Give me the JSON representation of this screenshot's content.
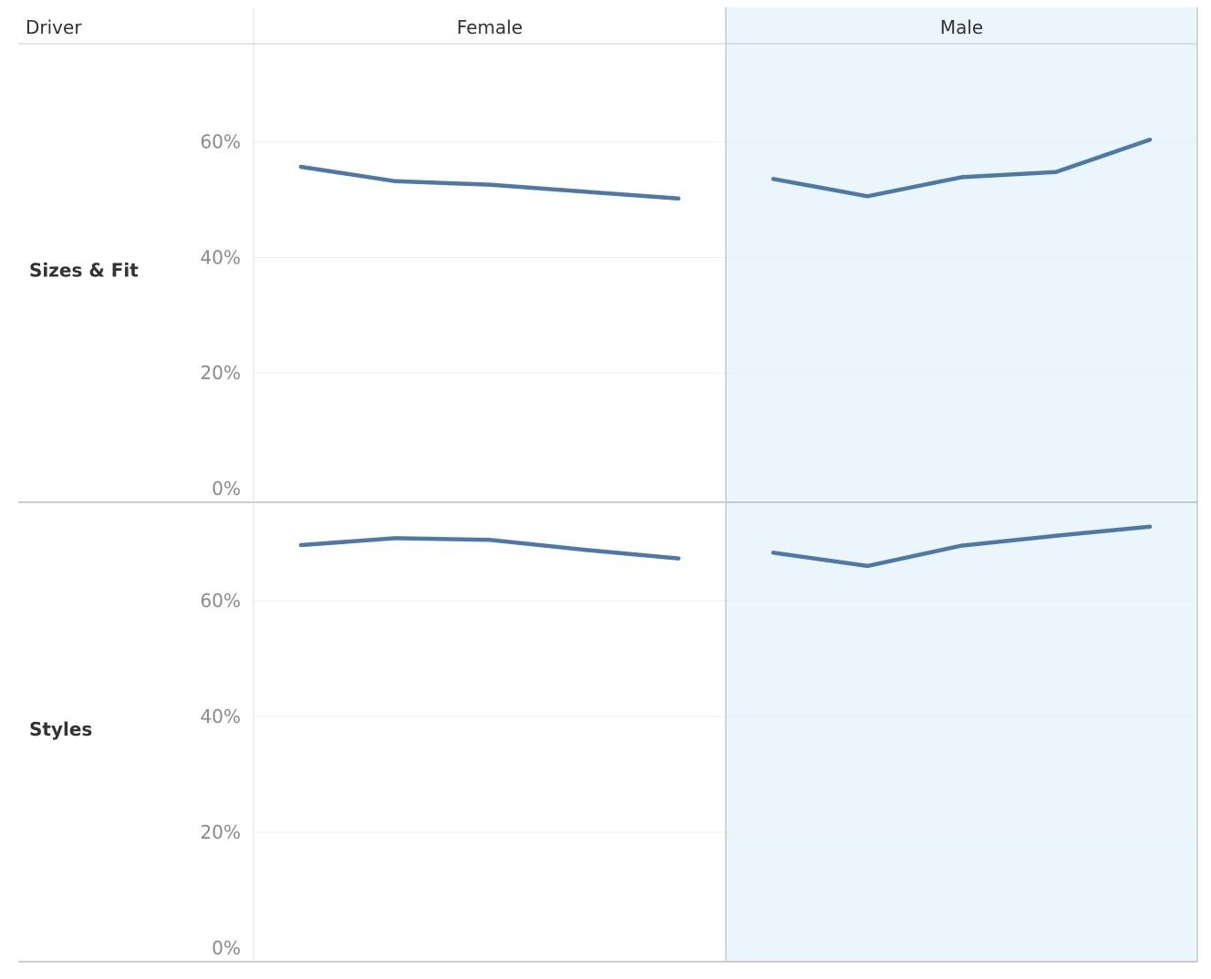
{
  "chart_data": {
    "type": "line",
    "row_header": "Driver",
    "columns": [
      "Female",
      "Male"
    ],
    "rows": [
      "Sizes & Fit",
      "Styles"
    ],
    "highlighted_column": "Male",
    "colors": {
      "line": "#4e79a7",
      "highlight_bg": "#eaf5fc",
      "grid": "#ededed",
      "divider": "#c8c8c8"
    },
    "y_ticks": [
      {
        "value": 0,
        "label": "0%"
      },
      {
        "value": 20,
        "label": "20%"
      },
      {
        "value": 40,
        "label": "40%"
      },
      {
        "value": 60,
        "label": "60%"
      }
    ],
    "ylim": [
      0,
      77
    ],
    "grid": true,
    "panels": [
      {
        "row": "Sizes & Fit",
        "column": "Female",
        "values": [
          55.7,
          53.2,
          52.6,
          51.4,
          50.2
        ]
      },
      {
        "row": "Sizes & Fit",
        "column": "Male",
        "values": [
          53.6,
          50.6,
          53.9,
          54.8,
          60.4
        ]
      },
      {
        "row": "Styles",
        "column": "Female",
        "values": [
          69.6,
          70.8,
          70.5,
          68.8,
          67.3
        ]
      },
      {
        "row": "Styles",
        "column": "Male",
        "values": [
          68.3,
          66.0,
          69.5,
          71.2,
          72.8
        ]
      }
    ]
  }
}
